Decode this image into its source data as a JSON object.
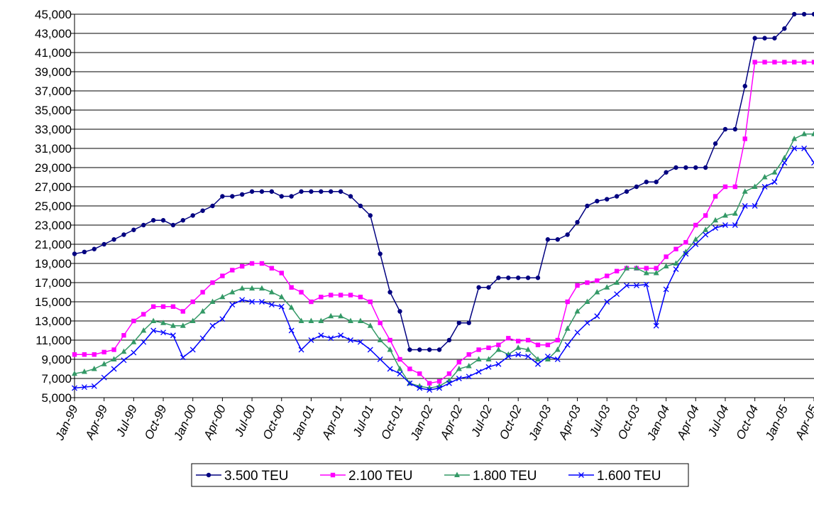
{
  "chart_data": {
    "type": "line",
    "categories": [
      "Jan-99",
      null,
      null,
      "Apr-99",
      null,
      null,
      "Jul-99",
      null,
      null,
      "Oct-99",
      null,
      null,
      "Jan-00",
      null,
      null,
      "Apr-00",
      null,
      null,
      "Jul-00",
      null,
      null,
      "Oct-00",
      null,
      null,
      "Jan-01",
      null,
      null,
      "Apr-01",
      null,
      null,
      "Jul-01",
      null,
      null,
      "Oct-01",
      null,
      null,
      "Jan-02",
      null,
      null,
      "Apr-02",
      null,
      null,
      "Jul-02",
      null,
      null,
      "Oct-02",
      null,
      null,
      "Jan-03",
      null,
      null,
      "Apr-03",
      null,
      null,
      "Jul-03",
      null,
      null,
      "Oct-03",
      null,
      null,
      "Jan-04",
      null,
      null,
      "Apr-04",
      null,
      null,
      "Jul-04",
      null,
      null,
      "Oct-04",
      null,
      null,
      "Jan-05",
      null,
      null,
      "Apr-05"
    ],
    "series": [
      {
        "name": "3.500 TEU",
        "color": "#000080",
        "marker": "circle",
        "values": [
          20000,
          20200,
          20500,
          21000,
          21500,
          22000,
          22500,
          23000,
          23500,
          23500,
          23000,
          23500,
          24000,
          24500,
          25000,
          26000,
          26000,
          26200,
          26500,
          26500,
          26500,
          26000,
          26000,
          26500,
          26500,
          26500,
          26500,
          26500,
          26000,
          25000,
          24000,
          20000,
          16000,
          14000,
          10000,
          10000,
          10000,
          10000,
          11000,
          12800,
          12800,
          16500,
          16500,
          17500,
          17500,
          17500,
          17500,
          17500,
          21500,
          21500,
          22000,
          23300,
          25000,
          25500,
          25700,
          26000,
          26500,
          27000,
          27500,
          27500,
          28500,
          29000,
          29000,
          29000,
          29000,
          31500,
          33000,
          33000,
          37500,
          42500,
          42500,
          42500,
          43500,
          45000,
          45000,
          45000
        ]
      },
      {
        "name": "2.100 TEU",
        "color": "#ff00ff",
        "marker": "square",
        "values": [
          9500,
          9500,
          9500,
          9750,
          10000,
          11500,
          13000,
          13700,
          14500,
          14500,
          14500,
          14000,
          15000,
          16000,
          17000,
          17700,
          18300,
          18700,
          19000,
          19000,
          18500,
          18000,
          16500,
          16000,
          15000,
          15500,
          15700,
          15700,
          15700,
          15500,
          15000,
          12800,
          11000,
          9000,
          8000,
          7500,
          6500,
          6700,
          7500,
          8700,
          9500,
          10000,
          10200,
          10500,
          11200,
          10900,
          11000,
          10500,
          10500,
          11000,
          15000,
          16700,
          17000,
          17200,
          17700,
          18200,
          18500,
          18500,
          18500,
          18500,
          19700,
          20500,
          21200,
          23000,
          24000,
          26000,
          27000,
          27000,
          32000,
          40000,
          40000,
          40000,
          40000,
          40000,
          40000,
          40000
        ]
      },
      {
        "name": "1.800 TEU",
        "color": "#339966",
        "marker": "triangle",
        "values": [
          7500,
          7700,
          8000,
          8500,
          9000,
          9800,
          10800,
          12000,
          13000,
          12800,
          12500,
          12500,
          13000,
          14000,
          15000,
          15500,
          16000,
          16400,
          16400,
          16400,
          16000,
          15500,
          14400,
          13000,
          13000,
          13000,
          13500,
          13500,
          13000,
          13000,
          12500,
          11000,
          10000,
          8000,
          6500,
          6200,
          6000,
          6200,
          6800,
          8000,
          8300,
          9000,
          9000,
          10000,
          9500,
          10200,
          10000,
          9000,
          9000,
          10000,
          12200,
          14000,
          15000,
          16000,
          16500,
          17000,
          18500,
          18500,
          18000,
          18000,
          18700,
          19000,
          20200,
          21500,
          22500,
          23500,
          24000,
          24200,
          26500,
          27000,
          28000,
          28500,
          30000,
          32000,
          32500,
          32500
        ]
      },
      {
        "name": "1.600 TEU",
        "color": "#0000ff",
        "marker": "x",
        "values": [
          6000,
          6100,
          6200,
          7100,
          8000,
          8900,
          9700,
          10800,
          12000,
          11800,
          11500,
          9200,
          10000,
          11200,
          12500,
          13200,
          14700,
          15200,
          15000,
          15000,
          14700,
          14500,
          12000,
          10000,
          11000,
          11500,
          11200,
          11500,
          11000,
          10800,
          10000,
          9000,
          8000,
          7500,
          6500,
          6000,
          5800,
          6000,
          6500,
          7000,
          7200,
          7700,
          8200,
          8500,
          9300,
          9500,
          9300,
          8500,
          9300,
          9000,
          10500,
          11800,
          12800,
          13500,
          15000,
          15800,
          16700,
          16700,
          16800,
          12500,
          16300,
          18400,
          20000,
          21000,
          22000,
          22700,
          23000,
          23000,
          25000,
          25000,
          27000,
          27500,
          29500,
          31000,
          31000,
          29500
        ]
      }
    ],
    "ylim": [
      5000,
      45000
    ],
    "yticks": [
      {
        "value": 5000,
        "label": "5,000"
      },
      {
        "value": 7000,
        "label": "7,000"
      },
      {
        "value": 9000,
        "label": "9,000"
      },
      {
        "value": 11000,
        "label": "11,000"
      },
      {
        "value": 13000,
        "label": "13,000"
      },
      {
        "value": 15000,
        "label": "15,000"
      },
      {
        "value": 17000,
        "label": "17,000"
      },
      {
        "value": 19000,
        "label": "19,000"
      },
      {
        "value": 21000,
        "label": "21,000"
      },
      {
        "value": 23000,
        "label": "23,000"
      },
      {
        "value": 25000,
        "label": "25,000"
      },
      {
        "value": 27000,
        "label": "27,000"
      },
      {
        "value": 29000,
        "label": "29,000"
      },
      {
        "value": 31000,
        "label": "31,000"
      },
      {
        "value": 33000,
        "label": "33,000"
      },
      {
        "value": 35000,
        "label": "35,000"
      },
      {
        "value": 37000,
        "label": "37,000"
      },
      {
        "value": 39000,
        "label": "39,000"
      },
      {
        "value": 41000,
        "label": "41,000"
      },
      {
        "value": 43000,
        "label": "43,000"
      },
      {
        "value": 45000,
        "label": "45,000"
      }
    ],
    "grid": true,
    "legend": "bottom"
  }
}
